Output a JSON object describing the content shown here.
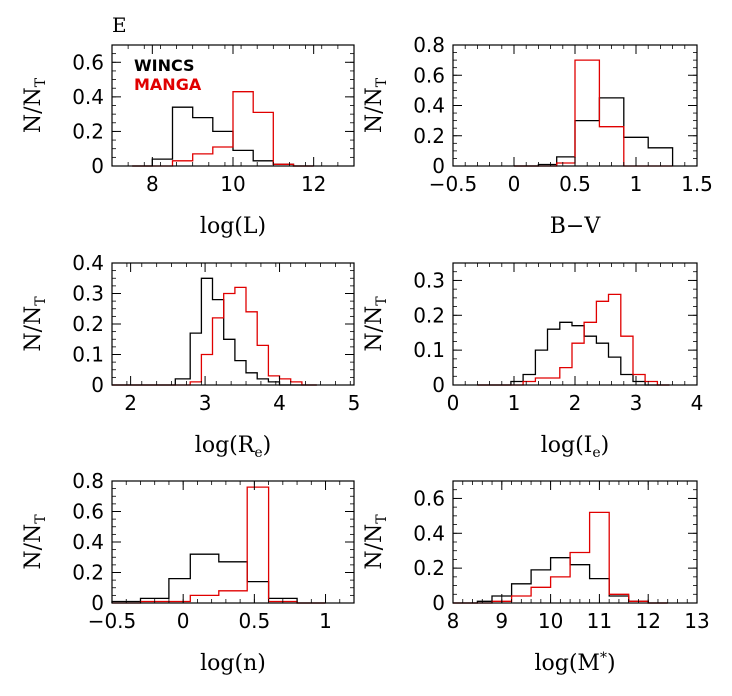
{
  "panel_label": "E",
  "legend": [
    {
      "name": "WINCS",
      "color": "#000000"
    },
    {
      "name": "MANGA",
      "color": "#e00000"
    }
  ],
  "chart_data": [
    {
      "type": "histogram",
      "xlabel": "log(L)",
      "ylabel": "N/N_T",
      "xlim": [
        7,
        13
      ],
      "ylim": [
        0,
        0.7
      ],
      "xticks": [
        8,
        10,
        12
      ],
      "yticks": [
        0,
        0.2,
        0.4,
        0.6
      ],
      "ytick_labels": [
        "0",
        "0.2",
        "0.4",
        "0.6"
      ],
      "bin_edges": [
        7.5,
        8.0,
        8.5,
        9.0,
        9.5,
        10.0,
        10.5,
        11.0,
        11.5,
        12.0
      ],
      "series": [
        {
          "name": "WINCS",
          "color": "#000000",
          "values": [
            0.0,
            0.04,
            0.34,
            0.28,
            0.2,
            0.09,
            0.03,
            0.01,
            0.0
          ]
        },
        {
          "name": "MANGA",
          "color": "#e00000",
          "values": [
            0.0,
            0.0,
            0.03,
            0.07,
            0.11,
            0.43,
            0.31,
            0.01,
            0.0
          ]
        }
      ]
    },
    {
      "type": "histogram",
      "xlabel": "B−V",
      "ylabel": "N/N_T",
      "xlim": [
        -0.5,
        1.5
      ],
      "ylim": [
        0,
        0.8
      ],
      "xticks": [
        -0.5,
        0,
        0.5,
        1,
        1.5
      ],
      "xtick_labels": [
        "−0.5",
        "0",
        "0.5",
        "1",
        "1.5"
      ],
      "yticks": [
        0,
        0.2,
        0.4,
        0.6,
        0.8
      ],
      "ytick_labels": [
        "0",
        "0.2",
        "0.4",
        "0.6",
        "0.8"
      ],
      "bin_edges": [
        0.0,
        0.2,
        0.35,
        0.5,
        0.7,
        0.9,
        1.1,
        1.3
      ],
      "series": [
        {
          "name": "WINCS",
          "color": "#000000",
          "values": [
            0.0,
            0.01,
            0.06,
            0.3,
            0.45,
            0.19,
            0.12
          ]
        },
        {
          "name": "MANGA",
          "color": "#e00000",
          "values": [
            0.0,
            0.0,
            0.02,
            0.7,
            0.26,
            0.0,
            0.0
          ]
        }
      ]
    },
    {
      "type": "histogram",
      "xlabel": "log(R_e)",
      "ylabel": "N/N_T",
      "xlim": [
        1.75,
        5
      ],
      "ylim": [
        0,
        0.4
      ],
      "xticks": [
        2,
        3,
        4,
        5
      ],
      "yticks": [
        0,
        0.1,
        0.2,
        0.3,
        0.4
      ],
      "ytick_labels": [
        "0",
        "0.1",
        "0.2",
        "0.3",
        "0.4"
      ],
      "bin_edges": [
        1.75,
        2.6,
        2.8,
        2.95,
        3.1,
        3.25,
        3.4,
        3.55,
        3.7,
        3.85,
        4.0,
        4.15,
        4.3,
        4.5
      ],
      "series": [
        {
          "name": "WINCS",
          "color": "#000000",
          "values": [
            0.0,
            0.02,
            0.17,
            0.35,
            0.28,
            0.15,
            0.08,
            0.04,
            0.02,
            0.01,
            0.0,
            0.0,
            0.0
          ]
        },
        {
          "name": "MANGA",
          "color": "#e00000",
          "values": [
            0.0,
            0.0,
            0.01,
            0.1,
            0.22,
            0.3,
            0.32,
            0.24,
            0.13,
            0.03,
            0.02,
            0.01,
            0.0
          ]
        }
      ]
    },
    {
      "type": "histogram",
      "xlabel": "log(I_e)",
      "ylabel": "N/N_T",
      "xlim": [
        0,
        4
      ],
      "ylim": [
        0,
        0.35
      ],
      "xticks": [
        0,
        1,
        2,
        3,
        4
      ],
      "yticks": [
        0,
        0.1,
        0.2,
        0.3
      ],
      "ytick_labels": [
        "0",
        "0.1",
        "0.2",
        "0.3"
      ],
      "bin_edges": [
        0.4,
        0.95,
        1.15,
        1.35,
        1.55,
        1.75,
        1.95,
        2.15,
        2.35,
        2.55,
        2.75,
        2.95,
        3.15,
        3.35,
        3.55
      ],
      "series": [
        {
          "name": "WINCS",
          "color": "#000000",
          "values": [
            0.0,
            0.01,
            0.03,
            0.1,
            0.16,
            0.18,
            0.17,
            0.14,
            0.12,
            0.08,
            0.03,
            0.01,
            0.0,
            0.0
          ]
        },
        {
          "name": "MANGA",
          "color": "#e00000",
          "values": [
            0.0,
            0.0,
            0.01,
            0.02,
            0.02,
            0.05,
            0.12,
            0.18,
            0.24,
            0.26,
            0.14,
            0.03,
            0.01,
            0.0
          ]
        }
      ]
    },
    {
      "type": "histogram",
      "xlabel": "log(n)",
      "ylabel": "N/N_T",
      "xlim": [
        -0.5,
        1.2
      ],
      "ylim": [
        0,
        0.8
      ],
      "xticks": [
        -0.5,
        0,
        0.5,
        1
      ],
      "xtick_labels": [
        "−0.5",
        "0",
        "0.5",
        "1"
      ],
      "yticks": [
        0,
        0.2,
        0.4,
        0.6,
        0.8
      ],
      "ytick_labels": [
        "0",
        "0.2",
        "0.4",
        "0.6",
        "0.8"
      ],
      "bin_edges": [
        -0.5,
        -0.3,
        -0.1,
        0.05,
        0.25,
        0.45,
        0.6,
        0.8,
        1.0
      ],
      "series": [
        {
          "name": "WINCS",
          "color": "#000000",
          "values": [
            0.01,
            0.03,
            0.16,
            0.32,
            0.27,
            0.14,
            0.03,
            0.0
          ]
        },
        {
          "name": "MANGA",
          "color": "#e00000",
          "values": [
            0.0,
            0.01,
            0.01,
            0.05,
            0.08,
            0.76,
            0.01,
            0.0
          ]
        }
      ]
    },
    {
      "type": "histogram",
      "xlabel": "log(M*)",
      "ylabel": "N/N_T",
      "xlim": [
        8,
        13
      ],
      "ylim": [
        0,
        0.7
      ],
      "xticks": [
        8,
        9,
        10,
        11,
        12,
        13
      ],
      "yticks": [
        0,
        0.2,
        0.4,
        0.6
      ],
      "ytick_labels": [
        "0",
        "0.2",
        "0.4",
        "0.6"
      ],
      "bin_edges": [
        8.0,
        8.5,
        8.8,
        9.2,
        9.6,
        10.0,
        10.4,
        10.8,
        11.2,
        11.6,
        12.0,
        12.4
      ],
      "series": [
        {
          "name": "WINCS",
          "color": "#000000",
          "values": [
            0.0,
            0.01,
            0.04,
            0.11,
            0.19,
            0.26,
            0.22,
            0.14,
            0.04,
            0.01,
            0.0
          ]
        },
        {
          "name": "MANGA",
          "color": "#e00000",
          "values": [
            0.0,
            0.0,
            0.01,
            0.04,
            0.09,
            0.15,
            0.29,
            0.52,
            0.05,
            0.01,
            0.0
          ]
        }
      ]
    }
  ]
}
